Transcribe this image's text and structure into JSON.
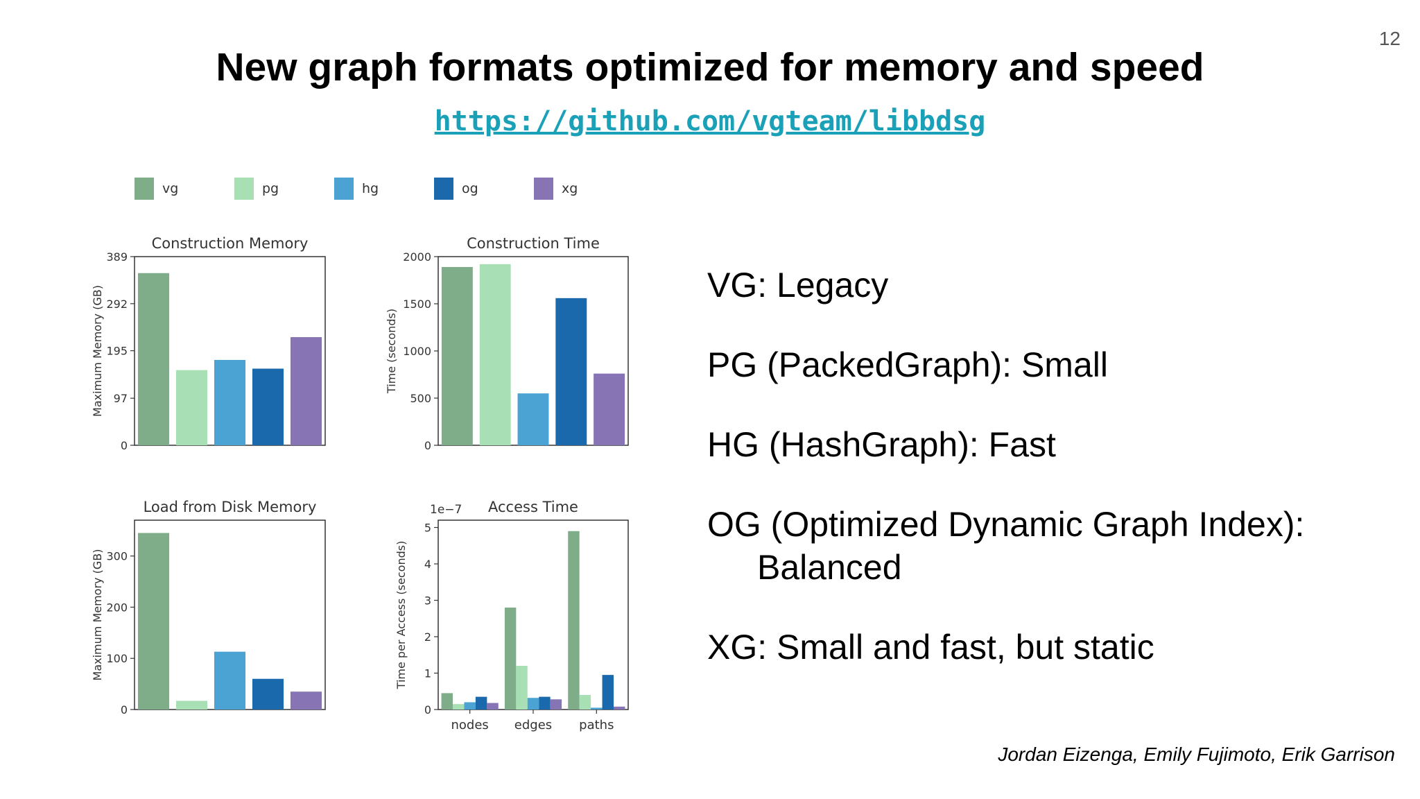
{
  "slide": {
    "number": "12",
    "title": "New graph formats optimized for memory and speed",
    "link": "https://github.com/vgteam/libbdsg",
    "bullets": [
      {
        "text": "VG: Legacy"
      },
      {
        "text": "PG (PackedGraph): Small"
      },
      {
        "text": "HG (HashGraph): Fast"
      },
      {
        "text": "OG (Optimized Dynamic Graph Index):",
        "continuation": "Balanced"
      },
      {
        "text": "XG: Small and fast, but static"
      }
    ],
    "authors": "Jordan Eizenga, Emily Fujimoto, Erik Garrison"
  },
  "legend": [
    {
      "label": "vg",
      "color": "#7fad8a"
    },
    {
      "label": "pg",
      "color": "#a9dfb5"
    },
    {
      "label": "hg",
      "color": "#4aa3d3"
    },
    {
      "label": "og",
      "color": "#1a69ad"
    },
    {
      "label": "xg",
      "color": "#8674b5"
    }
  ],
  "chart_data": [
    {
      "type": "bar",
      "title": "Construction Memory",
      "ylabel": "Maximum Memory (GB)",
      "categories": [
        "vg",
        "pg",
        "hg",
        "og",
        "xg"
      ],
      "values": [
        355,
        155,
        176,
        158,
        223
      ],
      "ylim": [
        0,
        389
      ],
      "yticks": [
        0,
        97,
        195,
        292,
        389
      ]
    },
    {
      "type": "bar",
      "title": "Construction Time",
      "ylabel": "Time (seconds)",
      "categories": [
        "vg",
        "pg",
        "hg",
        "og",
        "xg"
      ],
      "values": [
        1890,
        1920,
        550,
        1560,
        760
      ],
      "ylim": [
        0,
        2000
      ],
      "yticks": [
        0,
        500,
        1000,
        1500,
        2000
      ]
    },
    {
      "type": "bar",
      "title": "Load from Disk Memory",
      "ylabel": "Maximum Memory (GB)",
      "categories": [
        "vg",
        "pg",
        "hg",
        "og",
        "xg"
      ],
      "values": [
        345,
        17,
        113,
        60,
        35
      ],
      "ylim": [
        0,
        370
      ],
      "yticks": [
        0,
        100,
        200,
        300
      ]
    },
    {
      "type": "bar",
      "title": "Access Time",
      "ylabel": "Time per Access (seconds)",
      "scale_note": "1e−7",
      "categories": [
        "nodes",
        "edges",
        "paths"
      ],
      "series": [
        {
          "name": "vg",
          "values": [
            0.45,
            2.8,
            4.9
          ]
        },
        {
          "name": "pg",
          "values": [
            0.15,
            1.2,
            0.4
          ]
        },
        {
          "name": "hg",
          "values": [
            0.2,
            0.32,
            0.05
          ]
        },
        {
          "name": "og",
          "values": [
            0.35,
            0.35,
            0.95
          ]
        },
        {
          "name": "xg",
          "values": [
            0.18,
            0.28,
            0.08
          ]
        }
      ],
      "ylim": [
        0,
        5.2
      ],
      "yticks": [
        0,
        1,
        2,
        3,
        4,
        5
      ]
    }
  ]
}
